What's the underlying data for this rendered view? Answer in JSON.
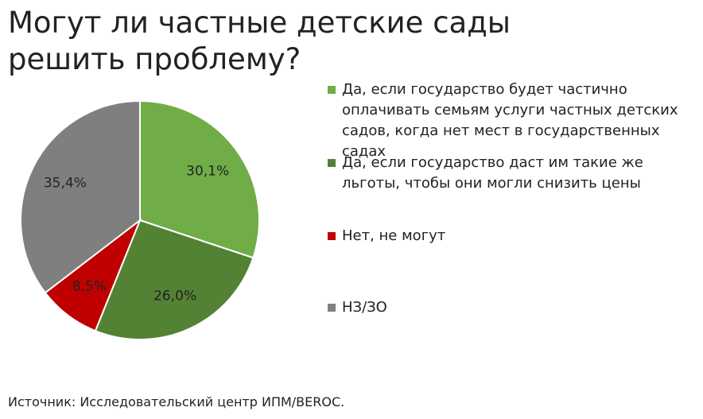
{
  "chart_data": {
    "type": "pie",
    "title": "Могут ли частные детские сады решить проблему?",
    "categories": [
      "Да, если государство будет частично оплачивать семьям услуги частных детских садов, когда нет мест в государственных садах",
      "Да, если государство даст им такие же льготы, чтобы они могли снизить цены",
      "Нет, не могут",
      "НЗ/ЗО"
    ],
    "values": [
      30.1,
      26.0,
      8.5,
      35.4
    ],
    "value_labels": [
      "30,1%",
      "26,0%",
      "8,5%",
      "35,4%"
    ],
    "colors": [
      "#70ad47",
      "#548235",
      "#c00000",
      "#7f7f7f"
    ],
    "source": "Источник: Исследовательский центр ИПМ/BEROC."
  }
}
